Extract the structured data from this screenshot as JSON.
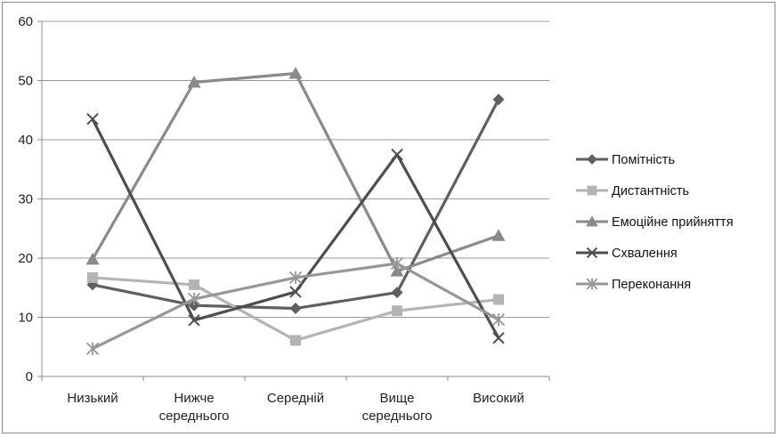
{
  "chart_data": {
    "type": "line",
    "categories": [
      [
        "Низький"
      ],
      [
        "Нижче",
        "середнього"
      ],
      [
        "Середній"
      ],
      [
        "Вище",
        "середнього"
      ],
      [
        "Високий"
      ]
    ],
    "ylim": [
      0,
      60
    ],
    "yticks": [
      "0",
      "10",
      "20",
      "30",
      "40",
      "50",
      "60"
    ],
    "grid": "horizontal",
    "legend_position": "right",
    "series": [
      {
        "name": "Помітність",
        "values": [
          15.5,
          12,
          11.5,
          14.2,
          46.8
        ],
        "marker": "diamond",
        "color": "#5f5f5f"
      },
      {
        "name": "Дистантність",
        "values": [
          16.7,
          15.5,
          6.1,
          11.1,
          13
        ],
        "marker": "square",
        "color": "#b4b4b4"
      },
      {
        "name": "Емоційне прийняття",
        "values": [
          19.8,
          49.7,
          51.2,
          17.8,
          23.8
        ],
        "marker": "triangle",
        "color": "#8a8a8a"
      },
      {
        "name": "Схвалення",
        "values": [
          43.5,
          9.5,
          14.3,
          37.5,
          6.5
        ],
        "marker": "x",
        "color": "#4e4e4e"
      },
      {
        "name": "Переконання",
        "values": [
          4.7,
          13.1,
          16.7,
          19.1,
          9.6
        ],
        "marker": "star",
        "color": "#979797"
      }
    ]
  }
}
